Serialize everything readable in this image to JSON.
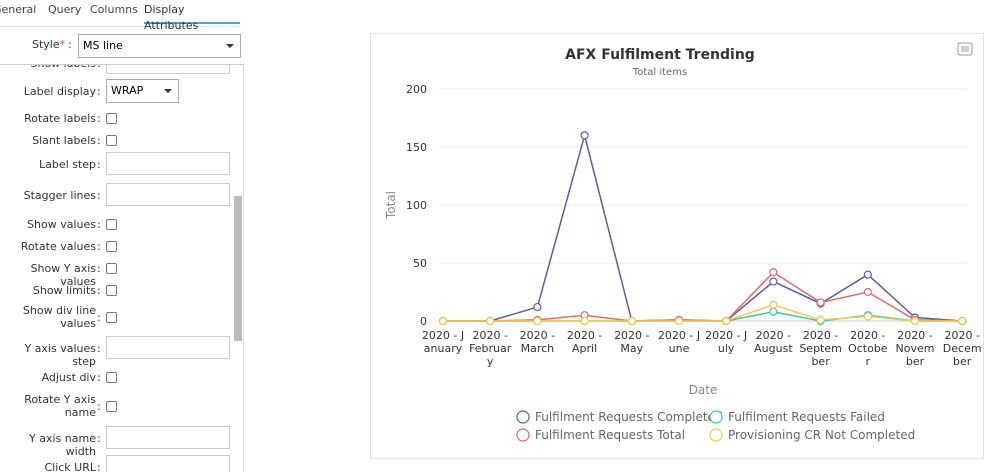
{
  "tabs": [
    "General",
    "Query",
    "Columns",
    "Display Attributes"
  ],
  "style_field": {
    "label": "Style",
    "required": "*",
    "separator": ":",
    "value": "MS line"
  },
  "form": [
    {
      "label": "Show labels",
      "kind": "text"
    },
    {
      "label": "Label display",
      "kind": "select",
      "value": "WRAP"
    },
    {
      "label": "Rotate labels",
      "kind": "checkbox"
    },
    {
      "label": "Slant labels",
      "kind": "checkbox"
    },
    {
      "label": "Label step",
      "kind": "text"
    },
    {
      "label": "Stagger lines",
      "kind": "text"
    },
    {
      "label": "Show values",
      "kind": "checkbox"
    },
    {
      "label": "Rotate values",
      "kind": "checkbox"
    },
    {
      "label": "Show Y axis values",
      "kind": "checkbox"
    },
    {
      "label": "Show limits",
      "kind": "checkbox"
    },
    {
      "label": "Show div line values",
      "kind": "checkbox"
    },
    {
      "label": "Y axis values step",
      "kind": "text"
    },
    {
      "label": "Adjust div",
      "kind": "checkbox"
    },
    {
      "label": "Rotate Y axis name",
      "kind": "checkbox"
    },
    {
      "label": "Y axis name width",
      "kind": "text"
    },
    {
      "label": "Click URL",
      "kind": "text"
    }
  ],
  "chart_data": {
    "type": "line",
    "title": "AFX Fulfilment Trending",
    "subtitle": "Total items",
    "y_label": "Total",
    "x_label": "Date",
    "categories": [
      "2020 - January",
      "2020 - February",
      "2020 - March",
      "2020 - April",
      "2020 - May",
      "2020 - June",
      "2020 - July",
      "2020 - August",
      "2020 - September",
      "2020 - October",
      "2020 - November",
      "2020 - December"
    ],
    "ylim": [
      0,
      200
    ],
    "yticks": [
      0,
      50,
      100,
      150,
      200
    ],
    "grid": true,
    "series": [
      {
        "name": "Fulfilment Requests Completed",
        "color": "#5b5ea6",
        "values": [
          0,
          0,
          12,
          160,
          0,
          1,
          0,
          34,
          15,
          40,
          3,
          0
        ]
      },
      {
        "name": "Fulfilment Requests Failed",
        "color": "#3cc3b5",
        "values": [
          0,
          0,
          0,
          0,
          0,
          0,
          0,
          8,
          0,
          5,
          0,
          0
        ]
      },
      {
        "name": "Fulfilment Requests Total",
        "color": "#e8676b",
        "values": [
          0,
          0,
          1,
          5,
          0,
          1,
          0,
          42,
          16,
          25,
          1,
          0
        ]
      },
      {
        "name": "Provisioning CR Not Completed",
        "color": "#f5c84c",
        "values": [
          0,
          0,
          0,
          0,
          0,
          0,
          0,
          14,
          1,
          4,
          0,
          0
        ]
      }
    ]
  }
}
